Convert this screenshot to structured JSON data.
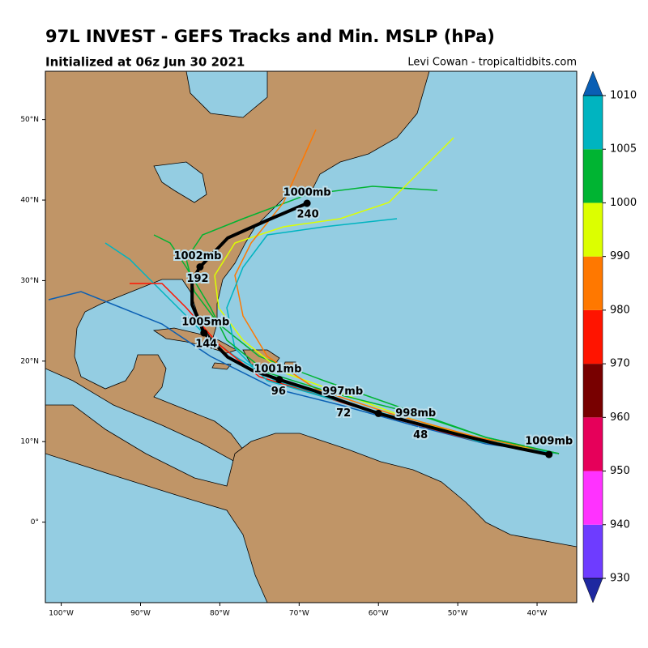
{
  "header": {
    "title": "97L INVEST - GEFS Tracks and Min. MSLP (hPa)",
    "subtitle": "Initialized at 06z Jun 30 2021",
    "credit": "Levi Cowan - tropicaltidbits.com"
  },
  "map": {
    "xlim": [
      -102,
      -35
    ],
    "ylim": [
      -10,
      56
    ],
    "xticks": [
      {
        "value": -100,
        "label": "100°W"
      },
      {
        "value": -90,
        "label": "90°W"
      },
      {
        "value": -80,
        "label": "80°W"
      },
      {
        "value": -70,
        "label": "70°W"
      },
      {
        "value": -60,
        "label": "60°W"
      },
      {
        "value": -50,
        "label": "50°W"
      },
      {
        "value": -40,
        "label": "40°W"
      }
    ],
    "yticks": [
      {
        "value": 0,
        "label": "0°"
      },
      {
        "value": 10,
        "label": "10°N"
      },
      {
        "value": 20,
        "label": "20°N"
      },
      {
        "value": 30,
        "label": "30°N"
      },
      {
        "value": 40,
        "label": "40°N"
      },
      {
        "value": 50,
        "label": "50°N"
      }
    ],
    "grid": true,
    "mean_track": {
      "color": "#000000",
      "lon": [
        -38.5,
        -45,
        -50,
        -55,
        -60,
        -64.5,
        -68,
        -72.5,
        -76,
        -79,
        -82,
        -83.5,
        -83.5,
        -82.5,
        -79,
        -74,
        -69
      ],
      "lat": [
        8.4,
        9.7,
        10.9,
        12.2,
        13.5,
        15.0,
        16.3,
        17.7,
        18.9,
        20.5,
        23.5,
        27.0,
        30.0,
        31.7,
        35.3,
        37.5,
        39.6
      ]
    },
    "pressure_labels": [
      {
        "text": "1009mb",
        "lon": -38.5,
        "lat": 10
      },
      {
        "text": "998mb",
        "lon": -55.3,
        "lat": 13.5
      },
      {
        "text": "997mb",
        "lon": -64.5,
        "lat": 16.2
      },
      {
        "text": "1001mb",
        "lon": -72.7,
        "lat": 19.0
      },
      {
        "text": "1005mb",
        "lon": -81.8,
        "lat": 24.8
      },
      {
        "text": "1002mb",
        "lon": -82.8,
        "lat": 33.0
      },
      {
        "text": "1000mb",
        "lon": -69,
        "lat": 40.9
      }
    ],
    "hour_labels": [
      {
        "value": 48,
        "lon": -54.7,
        "lat": 10.8
      },
      {
        "value": 72,
        "lon": -64.4,
        "lat": 13.5
      },
      {
        "value": 96,
        "lon": -72.6,
        "lat": 16.2
      },
      {
        "value": 144,
        "lon": -81.7,
        "lat": 22.1
      },
      {
        "value": 192,
        "lon": -82.8,
        "lat": 30.2
      },
      {
        "value": 240,
        "lon": -68.9,
        "lat": 38.2
      }
    ]
  },
  "colorbar": {
    "ticks": [
      930,
      940,
      950,
      960,
      970,
      980,
      990,
      1000,
      1005,
      1010
    ],
    "colors": [
      "#6e3cff",
      "#ff32ff",
      "#e6005a",
      "#780000",
      "#ff1400",
      "#ff7800",
      "#dcff00",
      "#00b432",
      "#00b4c0"
    ],
    "under_color": "#1e28a0",
    "over_color": "#0a5fb4"
  }
}
